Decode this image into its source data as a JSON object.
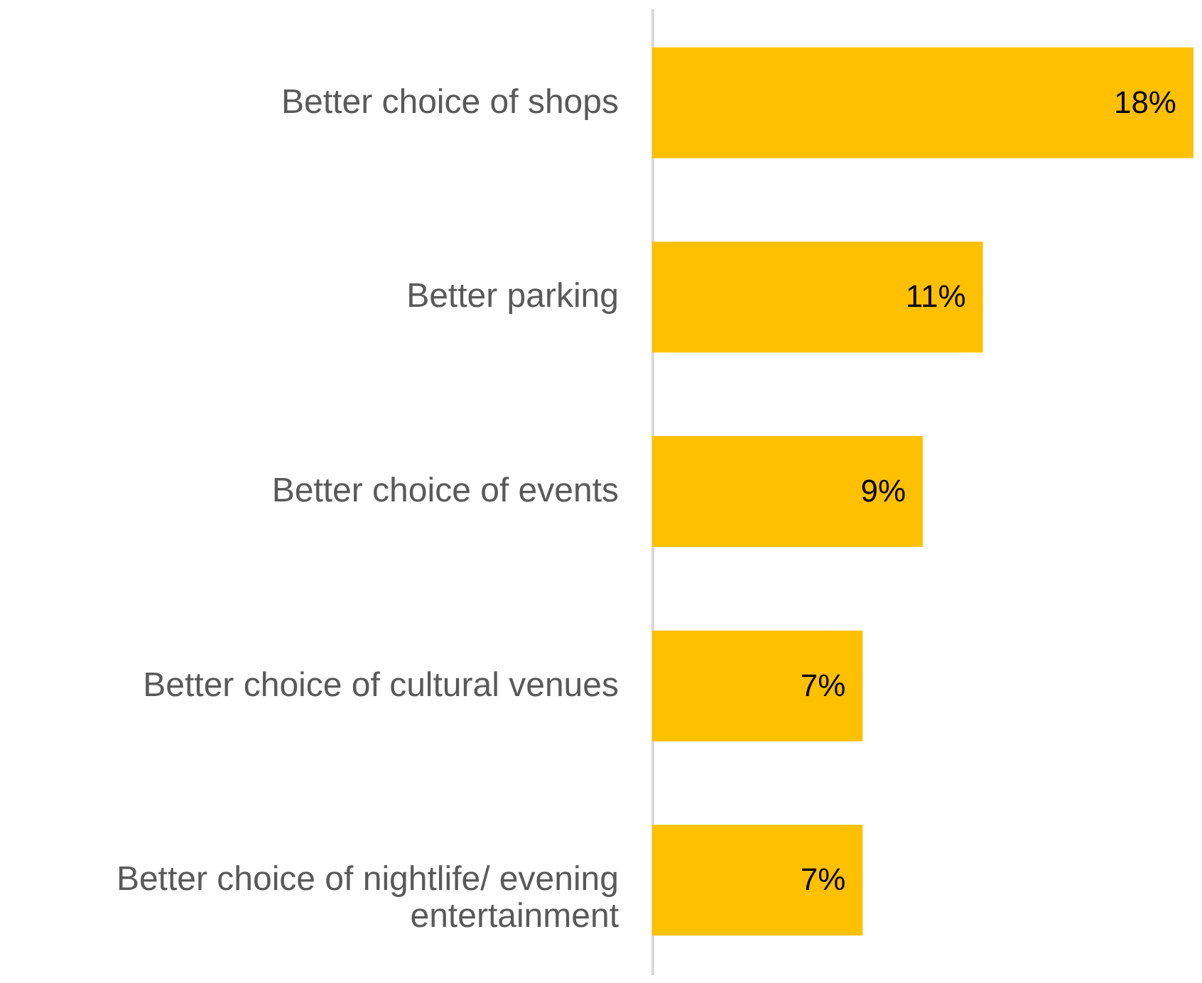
{
  "chart_data": {
    "type": "bar",
    "orientation": "horizontal",
    "categories": [
      "Better choice of shops",
      "Better parking",
      "Better choice of events",
      "Better choice of cultural venues",
      "Better choice of nightlife/ evening entertainment"
    ],
    "values": [
      18,
      11,
      9,
      7,
      7
    ],
    "value_labels": [
      "18%",
      "11%",
      "9%",
      "7%",
      "7%"
    ],
    "color": "#ffc000"
  }
}
